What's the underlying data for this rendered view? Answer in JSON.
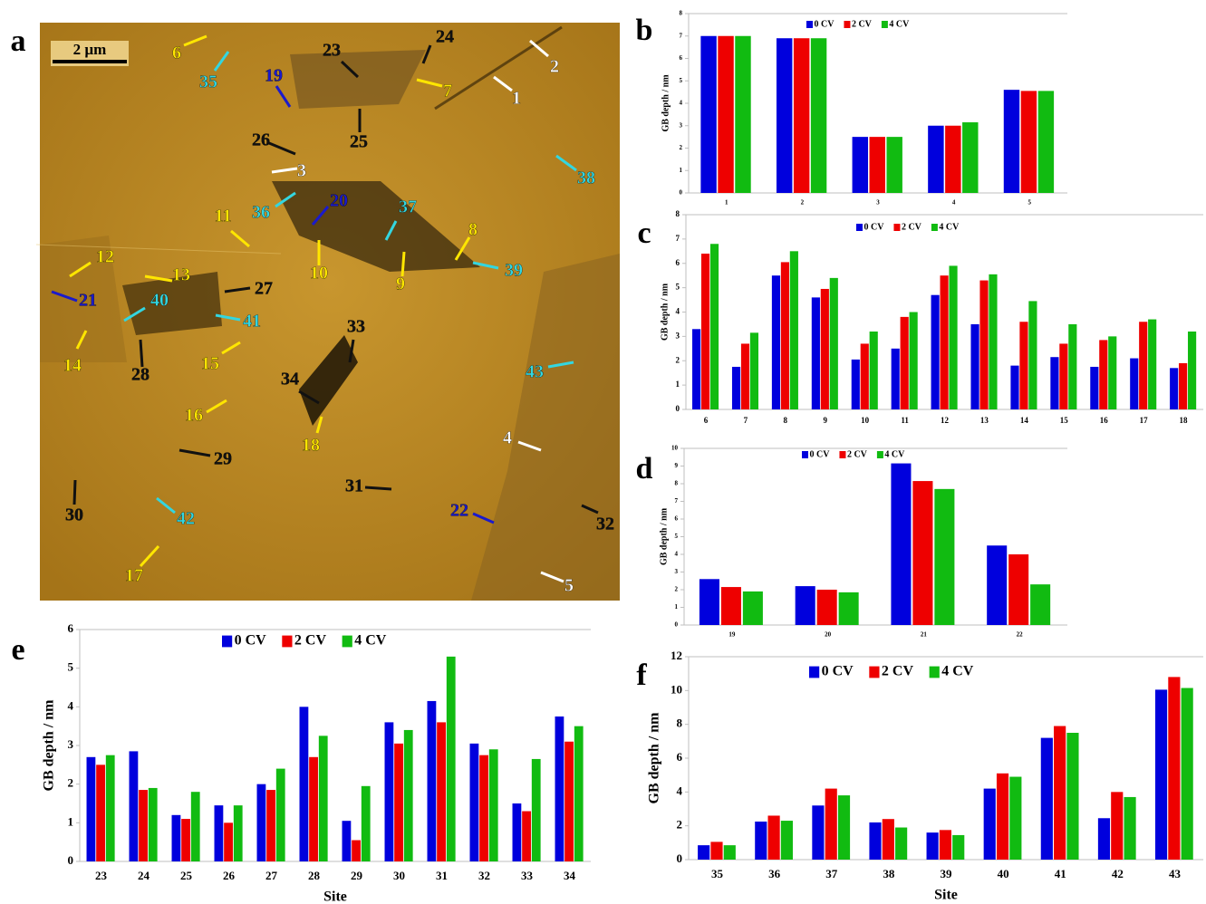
{
  "image_panel": {
    "label": "a",
    "scale_bar": "2 µm",
    "sites": [
      {
        "label": "1",
        "color": "#ffffff"
      },
      {
        "label": "2",
        "color": "#ffffff"
      },
      {
        "label": "3",
        "color": "#ffffff"
      },
      {
        "label": "4",
        "color": "#ffffff"
      },
      {
        "label": "5",
        "color": "#ffffff"
      },
      {
        "label": "6",
        "color": "#ffe600"
      },
      {
        "label": "7",
        "color": "#ffe600"
      },
      {
        "label": "8",
        "color": "#ffe600"
      },
      {
        "label": "9",
        "color": "#ffe600"
      },
      {
        "label": "10",
        "color": "#ffe600"
      },
      {
        "label": "11",
        "color": "#ffe600"
      },
      {
        "label": "12",
        "color": "#ffe600"
      },
      {
        "label": "13",
        "color": "#ffe600"
      },
      {
        "label": "14",
        "color": "#ffe600"
      },
      {
        "label": "15",
        "color": "#ffe600"
      },
      {
        "label": "16",
        "color": "#ffe600"
      },
      {
        "label": "17",
        "color": "#ffe600"
      },
      {
        "label": "18",
        "color": "#ffe600"
      },
      {
        "label": "19",
        "color": "#1a1acc"
      },
      {
        "label": "20",
        "color": "#1a1acc"
      },
      {
        "label": "21",
        "color": "#1a1acc"
      },
      {
        "label": "22",
        "color": "#1a1acc"
      },
      {
        "label": "23",
        "color": "#111111"
      },
      {
        "label": "24",
        "color": "#111111"
      },
      {
        "label": "25",
        "color": "#111111"
      },
      {
        "label": "26",
        "color": "#111111"
      },
      {
        "label": "27",
        "color": "#111111"
      },
      {
        "label": "28",
        "color": "#111111"
      },
      {
        "label": "29",
        "color": "#111111"
      },
      {
        "label": "30",
        "color": "#111111"
      },
      {
        "label": "31",
        "color": "#111111"
      },
      {
        "label": "32",
        "color": "#111111"
      },
      {
        "label": "33",
        "color": "#111111"
      },
      {
        "label": "34",
        "color": "#111111"
      },
      {
        "label": "35",
        "color": "#33d6e0"
      },
      {
        "label": "36",
        "color": "#33d6e0"
      },
      {
        "label": "37",
        "color": "#33d6e0"
      },
      {
        "label": "38",
        "color": "#33d6e0"
      },
      {
        "label": "39",
        "color": "#33d6e0"
      },
      {
        "label": "40",
        "color": "#33d6e0"
      },
      {
        "label": "41",
        "color": "#33d6e0"
      },
      {
        "label": "42",
        "color": "#33d6e0"
      },
      {
        "label": "43",
        "color": "#33d6e0"
      }
    ]
  },
  "chart_data": [
    {
      "type": "bar",
      "label": "b",
      "y_label": "GB depth / nm",
      "categories": [
        "1",
        "2",
        "3",
        "4",
        "5"
      ],
      "ylim": [
        0,
        8
      ],
      "yticks": [
        0,
        1,
        2,
        3,
        4,
        5,
        6,
        7,
        8
      ],
      "grid": false,
      "series": [
        {
          "name": "0 CV",
          "color": "#0000dd",
          "values": [
            7.0,
            6.9,
            2.5,
            3.0,
            4.6
          ]
        },
        {
          "name": "2 CV",
          "color": "#ee0000",
          "values": [
            7.0,
            6.9,
            2.5,
            3.0,
            4.55
          ]
        },
        {
          "name": "4 CV",
          "color": "#11bb11",
          "values": [
            7.0,
            6.9,
            2.5,
            3.15,
            4.55
          ]
        }
      ]
    },
    {
      "type": "bar",
      "label": "c",
      "y_label": "GB depth / nm",
      "categories": [
        "6",
        "7",
        "8",
        "9",
        "10",
        "11",
        "12",
        "13",
        "14",
        "15",
        "16",
        "17",
        "18"
      ],
      "ylim": [
        0,
        8
      ],
      "yticks": [
        0,
        1,
        2,
        3,
        4,
        5,
        6,
        7,
        8
      ],
      "grid": false,
      "series": [
        {
          "name": "0 CV",
          "color": "#0000dd",
          "values": [
            3.3,
            1.75,
            5.5,
            4.6,
            2.05,
            2.5,
            4.7,
            3.5,
            1.8,
            2.15,
            1.75,
            2.1,
            1.7
          ]
        },
        {
          "name": "2 CV",
          "color": "#ee0000",
          "values": [
            6.4,
            2.7,
            6.05,
            4.95,
            2.7,
            3.8,
            5.5,
            5.3,
            3.6,
            2.7,
            2.85,
            3.6,
            1.9
          ]
        },
        {
          "name": "4 CV",
          "color": "#11bb11",
          "values": [
            6.8,
            3.15,
            6.5,
            5.4,
            3.2,
            4.0,
            5.9,
            5.55,
            4.45,
            3.5,
            3.0,
            3.7,
            3.2
          ]
        }
      ]
    },
    {
      "type": "bar",
      "label": "d",
      "y_label": "GB depth / nm",
      "categories": [
        "19",
        "20",
        "21",
        "22"
      ],
      "ylim": [
        0,
        10
      ],
      "yticks": [
        0,
        1,
        2,
        3,
        4,
        5,
        6,
        7,
        8,
        9,
        10
      ],
      "grid": false,
      "series": [
        {
          "name": "0 CV",
          "color": "#0000dd",
          "values": [
            2.6,
            2.2,
            9.15,
            4.5
          ]
        },
        {
          "name": "2 CV",
          "color": "#ee0000",
          "values": [
            2.15,
            2.0,
            8.15,
            4.0
          ]
        },
        {
          "name": "4 CV",
          "color": "#11bb11",
          "values": [
            1.9,
            1.85,
            7.7,
            2.3
          ]
        }
      ]
    },
    {
      "type": "bar",
      "label": "e",
      "y_label": "GB depth / nm",
      "x_label": "Site",
      "categories": [
        "23",
        "24",
        "25",
        "26",
        "27",
        "28",
        "29",
        "30",
        "31",
        "32",
        "33",
        "34"
      ],
      "ylim": [
        0,
        6
      ],
      "yticks": [
        0,
        1,
        2,
        3,
        4,
        5,
        6
      ],
      "grid": false,
      "series": [
        {
          "name": "0 CV",
          "color": "#0000dd",
          "values": [
            2.7,
            2.85,
            1.2,
            1.45,
            2.0,
            4.0,
            1.05,
            3.6,
            4.15,
            3.05,
            1.5,
            3.75
          ]
        },
        {
          "name": "2 CV",
          "color": "#ee0000",
          "values": [
            2.5,
            1.85,
            1.1,
            1.0,
            1.85,
            2.7,
            0.55,
            3.05,
            3.6,
            2.75,
            1.3,
            3.1
          ]
        },
        {
          "name": "4 CV",
          "color": "#11bb11",
          "values": [
            2.75,
            1.9,
            1.8,
            1.45,
            2.4,
            3.25,
            1.95,
            3.4,
            5.3,
            2.9,
            2.65,
            3.5
          ]
        }
      ]
    },
    {
      "type": "bar",
      "label": "f",
      "y_label": "GB depth / nm",
      "x_label": "Site",
      "categories": [
        "35",
        "36",
        "37",
        "38",
        "39",
        "40",
        "41",
        "42",
        "43"
      ],
      "ylim": [
        0,
        12
      ],
      "yticks": [
        0,
        2,
        4,
        6,
        8,
        10,
        12
      ],
      "grid": false,
      "series": [
        {
          "name": "0 CV",
          "color": "#0000dd",
          "values": [
            0.85,
            2.25,
            3.2,
            2.2,
            1.6,
            4.2,
            7.2,
            2.45,
            10.05
          ]
        },
        {
          "name": "2 CV",
          "color": "#ee0000",
          "values": [
            1.05,
            2.6,
            4.2,
            2.4,
            1.75,
            5.1,
            7.9,
            4.0,
            10.8
          ]
        },
        {
          "name": "4 CV",
          "color": "#11bb11",
          "values": [
            0.85,
            2.3,
            3.8,
            1.9,
            1.45,
            4.9,
            7.5,
            3.7,
            10.15
          ]
        }
      ]
    }
  ]
}
